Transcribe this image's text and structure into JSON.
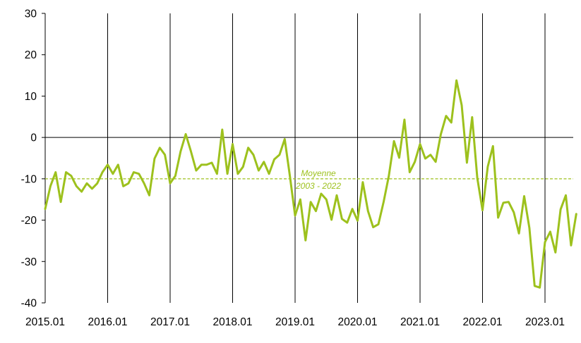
{
  "chart_data": {
    "type": "line",
    "title": "",
    "xlabel": "",
    "ylabel": "",
    "ylim": [
      -40,
      30
    ],
    "y_ticks": [
      30,
      20,
      10,
      0,
      -10,
      -20,
      -30,
      -40
    ],
    "x_ticks": [
      "2015.01",
      "2016.01",
      "2017.01",
      "2018.01",
      "2019.01",
      "2020.01",
      "2021.01",
      "2022.01",
      "2023.01"
    ],
    "grid": "vertical lines at each year start",
    "series": [
      {
        "color": "#9dc11d",
        "start": "2015.01",
        "frequency": "monthly",
        "values": [
          -17.3,
          -11.8,
          -8.4,
          -15.6,
          -8.4,
          -9.3,
          -11.8,
          -13.1,
          -11.1,
          -12.4,
          -11.1,
          -8.4,
          -6.6,
          -8.8,
          -6.6,
          -11.8,
          -11.1,
          -8.4,
          -8.8,
          -11.1,
          -14.0,
          -5.1,
          -2.5,
          -4.2,
          -11.1,
          -9.3,
          -3.4,
          0.8,
          -3.4,
          -8.0,
          -6.6,
          -6.6,
          -6.1,
          -8.8,
          1.9,
          -8.8,
          -1.6,
          -8.8,
          -7.1,
          -2.5,
          -4.2,
          -8.0,
          -5.9,
          -8.8,
          -5.3,
          -4.2,
          -0.4,
          -9.3,
          -18.9,
          -15.0,
          -24.9,
          -15.6,
          -17.8,
          -13.6,
          -15.0,
          -19.9,
          -14.0,
          -19.7,
          -20.6,
          -17.3,
          -20.1,
          -10.8,
          -17.8,
          -21.7,
          -21.0,
          -15.6,
          -9.3,
          -0.9,
          -4.9,
          4.3,
          -8.4,
          -5.9,
          -1.6,
          -5.1,
          -4.2,
          -5.9,
          0.8,
          5.2,
          3.6,
          13.8,
          7.8,
          -6.1,
          4.9,
          -9.8,
          -17.6,
          -7.1,
          -2.1,
          -19.4,
          -15.8,
          -15.6,
          -18.1,
          -23.2,
          -14.2,
          -21.9,
          -35.9,
          -36.3,
          -25.3,
          -22.8,
          -27.8,
          -17.4,
          -14.0,
          -26.1,
          -18.5
        ]
      }
    ],
    "reference_line": {
      "value": -10,
      "style": "dashed",
      "color": "#9dc11d",
      "label_line1": "Moyenne",
      "label_line2": "2003 - 2022"
    }
  }
}
